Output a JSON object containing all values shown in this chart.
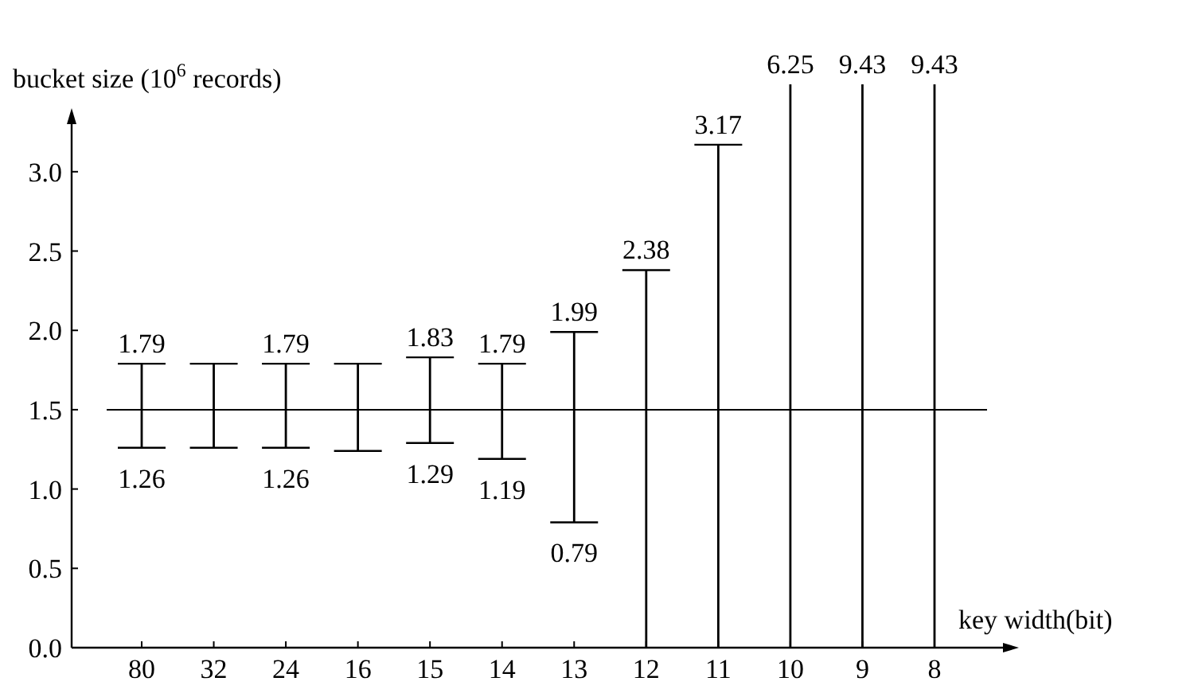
{
  "chart_data": {
    "type": "bar",
    "xlabel": "key width(bit)",
    "ylabel": "bucket size (10$^{6}$ records)",
    "categories": [
      "80",
      "32",
      "24",
      "16",
      "15",
      "14",
      "13",
      "12",
      "11",
      "10",
      "9",
      "8"
    ],
    "base": [
      1.26,
      1.26,
      1.26,
      1.24,
      1.29,
      1.19,
      0.79,
      0,
      0,
      0,
      0,
      0
    ],
    "values": [
      0.53,
      0.53,
      0.53,
      0.55,
      0.54,
      0.6,
      1.2,
      2.38,
      3.17,
      6.25,
      9.43,
      9.43
    ],
    "value_labels": [
      "1.79",
      null,
      "1.79",
      null,
      "1.83",
      "1.79",
      "1.99",
      "2.38",
      "3.17",
      "6.25",
      "9.43",
      "9.43"
    ],
    "color": "#000000",
    "ylim": [
      0,
      3.3
    ],
    "yticks": [
      {
        "value": 0,
        "label": "0.0"
      },
      0.5,
      {
        "value": 1,
        "label": "1.0"
      },
      1.5,
      {
        "value": 2,
        "label": "2.0"
      },
      2.5,
      {
        "value": 3,
        "label": "3.0"
      }
    ],
    "ref_lines": [
      {
        "axis": "y",
        "value": 1.5,
        "color": "#000000"
      }
    ],
    "annotations": [
      {
        "text": "1.26",
        "x": "80",
        "y": 1.26
      },
      {
        "text": "1.26",
        "x": "24",
        "y": 1.26
      },
      {
        "text": "1.29",
        "x": "15",
        "y": 1.29
      },
      {
        "text": "1.19",
        "x": "14",
        "y": 1.19
      },
      {
        "text": "0.79",
        "x": "13",
        "y": 0.79
      }
    ],
    "grid": false
  }
}
